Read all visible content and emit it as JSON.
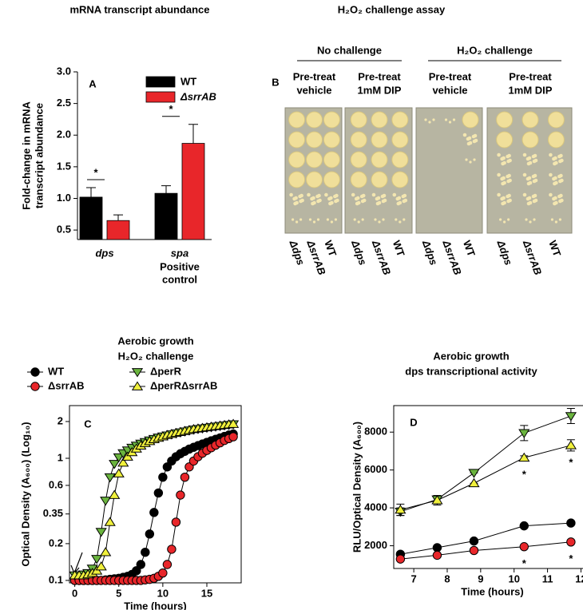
{
  "chart_data": [
    {
      "type": "bar",
      "panel_label": "A",
      "title": "mRNA transcript abundance",
      "y_label": [
        "Fold-change in mRNA",
        "transcript abundance"
      ],
      "categories": [
        "dps",
        "spa"
      ],
      "category_notes": [
        null,
        [
          "Positive",
          "control"
        ]
      ],
      "series": [
        {
          "name": "WT",
          "color": "#000000",
          "values": [
            1.02,
            1.08
          ],
          "errors": [
            0.15,
            0.12
          ]
        },
        {
          "name": "ΔsrrAB",
          "color": "#e8262a",
          "values": [
            0.65,
            1.87
          ],
          "errors": [
            0.09,
            0.3
          ]
        }
      ],
      "significance": [
        "*",
        "*"
      ],
      "ylim": [
        0.35,
        3.0
      ],
      "yticks": [
        0.5,
        {
          "value": 1,
          "label": "1.0"
        },
        1.5,
        {
          "value": 2,
          "label": "2.0"
        },
        2.5,
        {
          "value": 3,
          "label": "3.0"
        }
      ],
      "legend": "upper right"
    },
    {
      "type": "line",
      "log_y": true,
      "panel_label": "C",
      "title": [
        "Aerobic growth",
        "H₂O₂ challenge"
      ],
      "x_label": "Time (hours)",
      "y_label": "Optical Density (A₆₀₀) (Log₁₀)",
      "x": [
        0,
        0.5,
        1,
        1.5,
        2,
        2.5,
        3,
        3.5,
        4,
        4.5,
        5,
        5.5,
        6,
        6.5,
        7,
        7.5,
        8,
        8.5,
        9,
        9.5,
        10,
        10.5,
        11,
        11.5,
        12,
        12.5,
        13,
        13.5,
        14,
        14.5,
        15,
        15.5,
        16,
        16.5,
        17,
        17.5,
        18
      ],
      "series": [
        {
          "name": "WT",
          "color": "#000000",
          "marker": "circle",
          "values": [
            0.1,
            0.1,
            0.1,
            0.1,
            0.1,
            0.1,
            0.1,
            0.101,
            0.102,
            0.103,
            0.104,
            0.106,
            0.108,
            0.112,
            0.12,
            0.135,
            0.17,
            0.24,
            0.36,
            0.52,
            0.7,
            0.85,
            0.95,
            1.03,
            1.09,
            1.14,
            1.19,
            1.23,
            1.27,
            1.31,
            1.35,
            1.39,
            1.43,
            1.47,
            1.51,
            1.55,
            1.58
          ]
        },
        {
          "name": "ΔsrrAB",
          "color": "#e8262a",
          "marker": "circle",
          "values": [
            0.1,
            0.1,
            0.1,
            0.1,
            0.1,
            0.1,
            0.1,
            0.1,
            0.1,
            0.1,
            0.1,
            0.1,
            0.1,
            0.1,
            0.1,
            0.1,
            0.101,
            0.102,
            0.104,
            0.108,
            0.115,
            0.135,
            0.18,
            0.3,
            0.5,
            0.7,
            0.85,
            0.95,
            1.03,
            1.1,
            1.16,
            1.22,
            1.28,
            1.34,
            1.4,
            1.45,
            1.5
          ]
        },
        {
          "name": "ΔperR",
          "color": "#6ab43e",
          "marker": "triangle-down",
          "values": [
            0.11,
            0.11,
            0.112,
            0.115,
            0.125,
            0.15,
            0.25,
            0.45,
            0.7,
            0.9,
            1.02,
            1.1,
            1.16,
            1.22,
            1.27,
            1.32,
            1.36,
            1.4,
            1.44,
            1.48,
            1.51,
            1.54,
            1.57,
            1.6,
            1.63,
            1.66,
            1.69,
            1.72,
            1.74,
            1.76,
            1.78,
            1.8,
            1.82,
            1.84,
            1.86,
            1.88,
            1.9
          ]
        },
        {
          "name": "ΔperRΔsrrAB",
          "color": "#f0f03c",
          "marker": "triangle-up",
          "values": [
            0.11,
            0.11,
            0.11,
            0.112,
            0.115,
            0.12,
            0.13,
            0.17,
            0.3,
            0.5,
            0.75,
            0.92,
            1.03,
            1.12,
            1.2,
            1.27,
            1.33,
            1.38,
            1.43,
            1.47,
            1.51,
            1.55,
            1.58,
            1.61,
            1.64,
            1.67,
            1.7,
            1.73,
            1.75,
            1.77,
            1.79,
            1.81,
            1.83,
            1.85,
            1.87,
            1.89,
            1.91
          ]
        }
      ],
      "xlim": [
        -0.6,
        18.9
      ],
      "xticks": [
        0,
        5,
        10,
        15
      ],
      "ylim": [
        0.0955,
        2.7
      ],
      "yticks": [
        0.1,
        0.2,
        0.35,
        0.6,
        1,
        2
      ],
      "legend": "top"
    },
    {
      "type": "line",
      "panel_label": "D",
      "title": [
        "Aerobic growth",
        "dps transcriptional activity"
      ],
      "x_label": "Time (hours)",
      "y_label": "RLU/Optical Density (A₆₀₀)",
      "x": [
        6.6,
        7.7,
        8.8,
        10.3,
        11.7
      ],
      "series": [
        {
          "color": "#000000",
          "marker": "circle",
          "values": [
            1550,
            1900,
            2250,
            3050,
            3200
          ]
        },
        {
          "color": "#e8262a",
          "marker": "circle",
          "values": [
            1300,
            1500,
            1750,
            1950,
            2200
          ],
          "point_labels": [
            null,
            null,
            null,
            "*",
            "*"
          ]
        },
        {
          "color": "#6ab43e",
          "marker": "triangle-down",
          "values": [
            3800,
            4450,
            5850,
            7950,
            8850
          ],
          "errors": [
            200,
            200,
            0,
            400,
            400
          ]
        },
        {
          "color": "#f0f03c",
          "marker": "triangle-up",
          "values": [
            3900,
            4400,
            5300,
            6650,
            7300
          ],
          "errors": [
            300,
            250,
            0,
            100,
            300
          ],
          "point_labels": [
            null,
            null,
            null,
            "*",
            "*"
          ]
        }
      ],
      "xlim": [
        6.4,
        12.3
      ],
      "xticks": [
        7,
        8,
        9,
        10,
        11,
        12
      ],
      "ylim": [
        800,
        9400
      ],
      "yticks": [
        2000,
        4000,
        6000,
        8000
      ]
    }
  ],
  "plate_assay": {
    "title": "H₂O₂ challenge assay",
    "panel_label": "B",
    "groups": [
      {
        "label": "No challenge",
        "panels": [
          {
            "label": [
              "Pre-treat",
              "vehicle"
            ],
            "strains": [
              "Δdps",
              "ΔsrrAB",
              "WT"
            ]
          },
          {
            "label": [
              "Pre-treat",
              "1mM DIP"
            ],
            "strains": [
              "Δdps",
              "ΔsrrAB",
              "WT"
            ]
          }
        ]
      },
      {
        "label": "H₂O₂ challenge",
        "panels": [
          {
            "label": [
              "Pre-treat",
              "vehicle"
            ],
            "strains": [
              "Δdps",
              "ΔsrrAB",
              "WT"
            ]
          },
          {
            "label": [
              "Pre-treat",
              "1mM DIP"
            ],
            "strains": [
              "Δdps",
              "ΔsrrAB",
              "WT"
            ]
          }
        ]
      }
    ]
  }
}
